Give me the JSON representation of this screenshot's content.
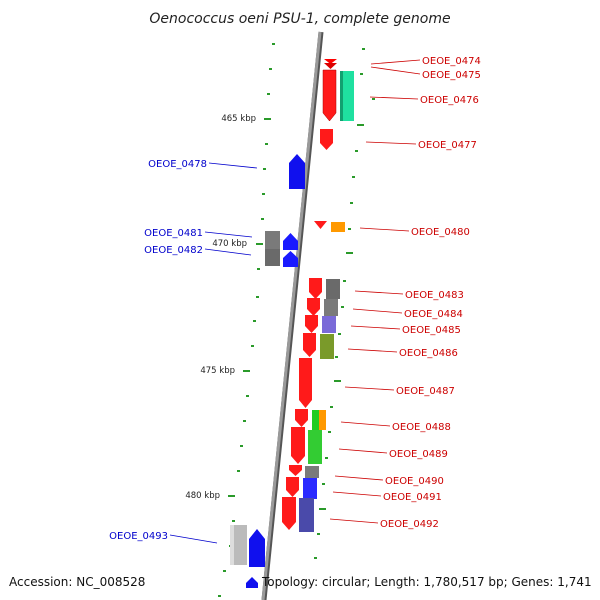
{
  "title": "Oenococcus oeni PSU-1, complete genome",
  "accession": "Accession: NC_008528",
  "summary": "Topology: circular; Length: 1,780,517 bp; Genes: 1,741",
  "colors": {
    "plus_strand_label": "#cc0000",
    "minus_strand_label": "#0000cc",
    "backbone": "#888888",
    "tick": "#229922"
  },
  "scale_labels": [
    "465 kbp",
    "470 kbp",
    "475 kbp",
    "480 kbp"
  ],
  "genes": {
    "g0474": "OEOE_0474",
    "g0475": "OEOE_0475",
    "g0476": "OEOE_0476",
    "g0477": "OEOE_0477",
    "g0478": "OEOE_0478",
    "g0480": "OEOE_0480",
    "g0481": "OEOE_0481",
    "g0482": "OEOE_0482",
    "g0483": "OEOE_0483",
    "g0484": "OEOE_0484",
    "g0485": "OEOE_0485",
    "g0486": "OEOE_0486",
    "g0487": "OEOE_0487",
    "g0488": "OEOE_0488",
    "g0489": "OEOE_0489",
    "g0490": "OEOE_0490",
    "g0491": "OEOE_0491",
    "g0492": "OEOE_0492",
    "g0493": "OEOE_0493"
  }
}
